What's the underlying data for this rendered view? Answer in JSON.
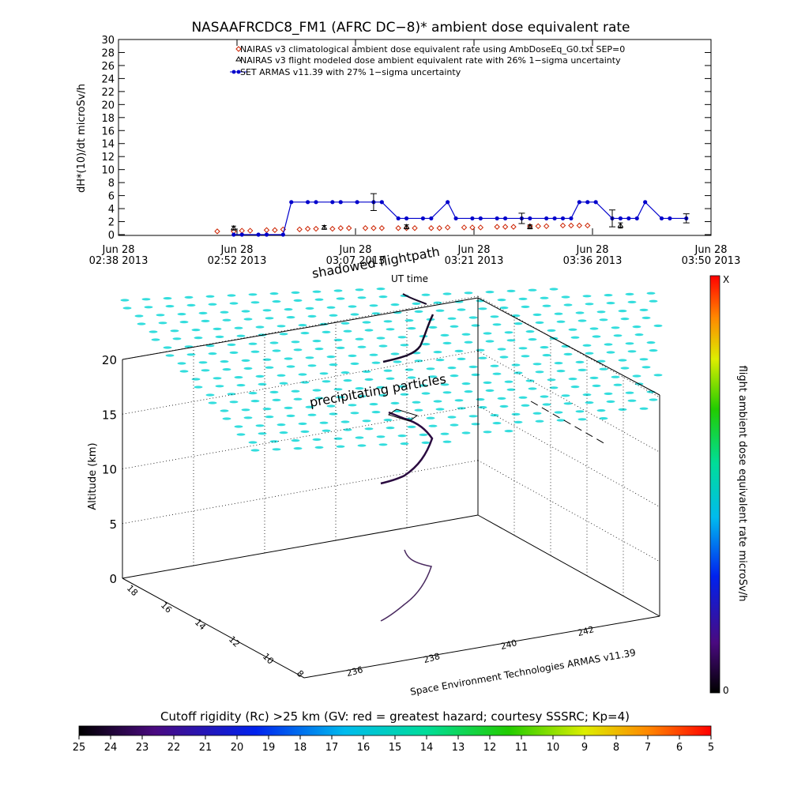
{
  "top_chart": {
    "title": "NASAAFRCDC8_FM1 (AFRC DC−8)* ambient dose equivalent rate",
    "ylabel": "dH*(10)/dt microSv/h",
    "y_ticks": [
      "0",
      "2",
      "4",
      "6",
      "8",
      "10",
      "12",
      "14",
      "16",
      "18",
      "20",
      "22",
      "24",
      "26",
      "28",
      "30"
    ],
    "x_ticks": [
      {
        "top": "Jun 28",
        "bottom": "02:38 2013"
      },
      {
        "top": "Jun 28",
        "bottom": "02:52 2013"
      },
      {
        "top": "Jun 28",
        "bottom": "03:07 2013"
      },
      {
        "top": "Jun 28",
        "bottom": "03:21 2013"
      },
      {
        "top": "Jun 28",
        "bottom": "03:36 2013"
      },
      {
        "top": "Jun 28",
        "bottom": "03:50 2013"
      }
    ],
    "legend": [
      "NAIRAS v3 climatological ambient dose equivalent rate using AmbDoseEq_G0.txt SEP=0",
      "NAIRAS v3 flight modeled dose ambient equivalent rate with 26% 1−sigma uncertainty",
      "SET ARMAS v11.39 with 27% 1−sigma uncertainty"
    ]
  },
  "chart_data": [
    {
      "type": "line",
      "title": "NASAAFRCDC8_FM1 (AFRC DC−8)* ambient dose equivalent rate",
      "xlabel": "",
      "ylabel": "dH*(10)/dt microSv/h",
      "x_range": [
        "2013-06-28 02:38",
        "2013-06-28 03:50"
      ],
      "ylim": [
        0,
        30
      ],
      "legend_position": "top-right",
      "series": [
        {
          "name": "NAIRAS v3 climatological ambient dose equivalent rate using AmbDoseEq_G0.txt SEP=0",
          "color": "#cc2200",
          "marker": "diamond",
          "x": [
            "02:50",
            "02:52",
            "02:53",
            "02:54",
            "02:56",
            "02:57",
            "02:58",
            "03:00",
            "03:01",
            "03:02",
            "03:04",
            "03:05",
            "03:06",
            "03:08",
            "03:09",
            "03:10",
            "03:12",
            "03:13",
            "03:14",
            "03:16",
            "03:17",
            "03:18",
            "03:20",
            "03:21",
            "03:22",
            "03:24",
            "03:25",
            "03:26",
            "03:28",
            "03:29",
            "03:30",
            "03:32",
            "03:33",
            "03:34",
            "03:35"
          ],
          "values": [
            0.5,
            0.5,
            0.6,
            0.6,
            0.7,
            0.7,
            0.8,
            0.8,
            0.9,
            0.9,
            0.9,
            1.0,
            1.0,
            1.0,
            1.0,
            1.0,
            1.0,
            1.0,
            1.0,
            1.0,
            1.0,
            1.1,
            1.1,
            1.1,
            1.1,
            1.2,
            1.2,
            1.2,
            1.3,
            1.3,
            1.3,
            1.4,
            1.4,
            1.4,
            1.4
          ]
        },
        {
          "name": "NAIRAS v3 flight modeled dose ambient equivalent rate with 26% 1−sigma uncertainty",
          "color": "#000000",
          "marker": "triangle",
          "x": [
            "02:52",
            "03:03",
            "03:13",
            "03:28",
            "03:39"
          ],
          "values": [
            1.0,
            1.1,
            1.2,
            1.2,
            1.4
          ],
          "errors": [
            0.3,
            0.3,
            0.3,
            0.3,
            0.4
          ]
        },
        {
          "name": "SET ARMAS v11.39 with 27% 1−sigma uncertainty",
          "color": "#0000cc",
          "marker": "circle",
          "x": [
            "02:52",
            "02:53",
            "02:55",
            "02:56",
            "02:58",
            "02:59",
            "03:01",
            "03:02",
            "03:04",
            "03:05",
            "03:07",
            "03:09",
            "03:10",
            "03:12",
            "03:13",
            "03:15",
            "03:16",
            "03:18",
            "03:19",
            "03:21",
            "03:22",
            "03:24",
            "03:25",
            "03:27",
            "03:28",
            "03:30",
            "03:31",
            "03:32",
            "03:33",
            "03:34",
            "03:35",
            "03:36",
            "03:38",
            "03:39",
            "03:40",
            "03:41",
            "03:42",
            "03:44",
            "03:45",
            "03:47"
          ],
          "values": [
            0,
            0,
            0,
            0,
            0,
            5,
            5,
            5,
            5,
            5,
            5,
            5,
            5,
            2.5,
            2.5,
            2.5,
            2.5,
            5,
            2.5,
            2.5,
            2.5,
            2.5,
            2.5,
            2.5,
            2.5,
            2.5,
            2.5,
            2.5,
            2.5,
            5,
            5,
            5,
            2.5,
            2.5,
            2.5,
            2.5,
            5,
            2.5,
            2.5,
            2.5
          ],
          "error_bar_indices": [
            11,
            23,
            32,
            39
          ],
          "error_bar_sizes": [
            1.3,
            0.8,
            1.3,
            0.7
          ]
        }
      ]
    },
    {
      "type": "scatter",
      "title": "",
      "zlabel": "Altitude (km)",
      "z_ticks": [
        "0",
        "5",
        "10",
        "15",
        "20"
      ],
      "zlim": [
        0,
        20
      ],
      "x_ticks": [
        "236",
        "238",
        "240",
        "242"
      ],
      "y_ticks": [
        "8",
        "10",
        "12",
        "14",
        "16",
        "18"
      ],
      "annotations": [
        "shadowed flightpath",
        "UT time",
        "precipitating particles"
      ],
      "credit": "Space Environment Technologies ARMAS v11.39",
      "series": [
        {
          "name": "flight path",
          "color": "#2a0a40"
        },
        {
          "name": "shadowed flightpath",
          "color": "#3a1a55"
        },
        {
          "name": "precipitating particles",
          "color": "#33dddd"
        }
      ]
    }
  ],
  "colorbar_right": {
    "label": "flight ambient dose equivalent rate microSv/h",
    "top_label": "X",
    "bottom_label": "0"
  },
  "colorbar_bottom": {
    "title": "Cutoff rigidity (Rc) >25 km (GV: red = greatest hazard; courtesy SSSRC; Kp=4)",
    "ticks": [
      "25",
      "24",
      "23",
      "22",
      "21",
      "20",
      "19",
      "18",
      "17",
      "16",
      "15",
      "14",
      "13",
      "12",
      "11",
      "10",
      "9",
      "8",
      "7",
      "6",
      "5"
    ]
  },
  "colors": {
    "armas": "#0000cc",
    "nairas_clim": "#cc2200",
    "particles": "#33dddd",
    "flightpath": "#2a0a40"
  }
}
